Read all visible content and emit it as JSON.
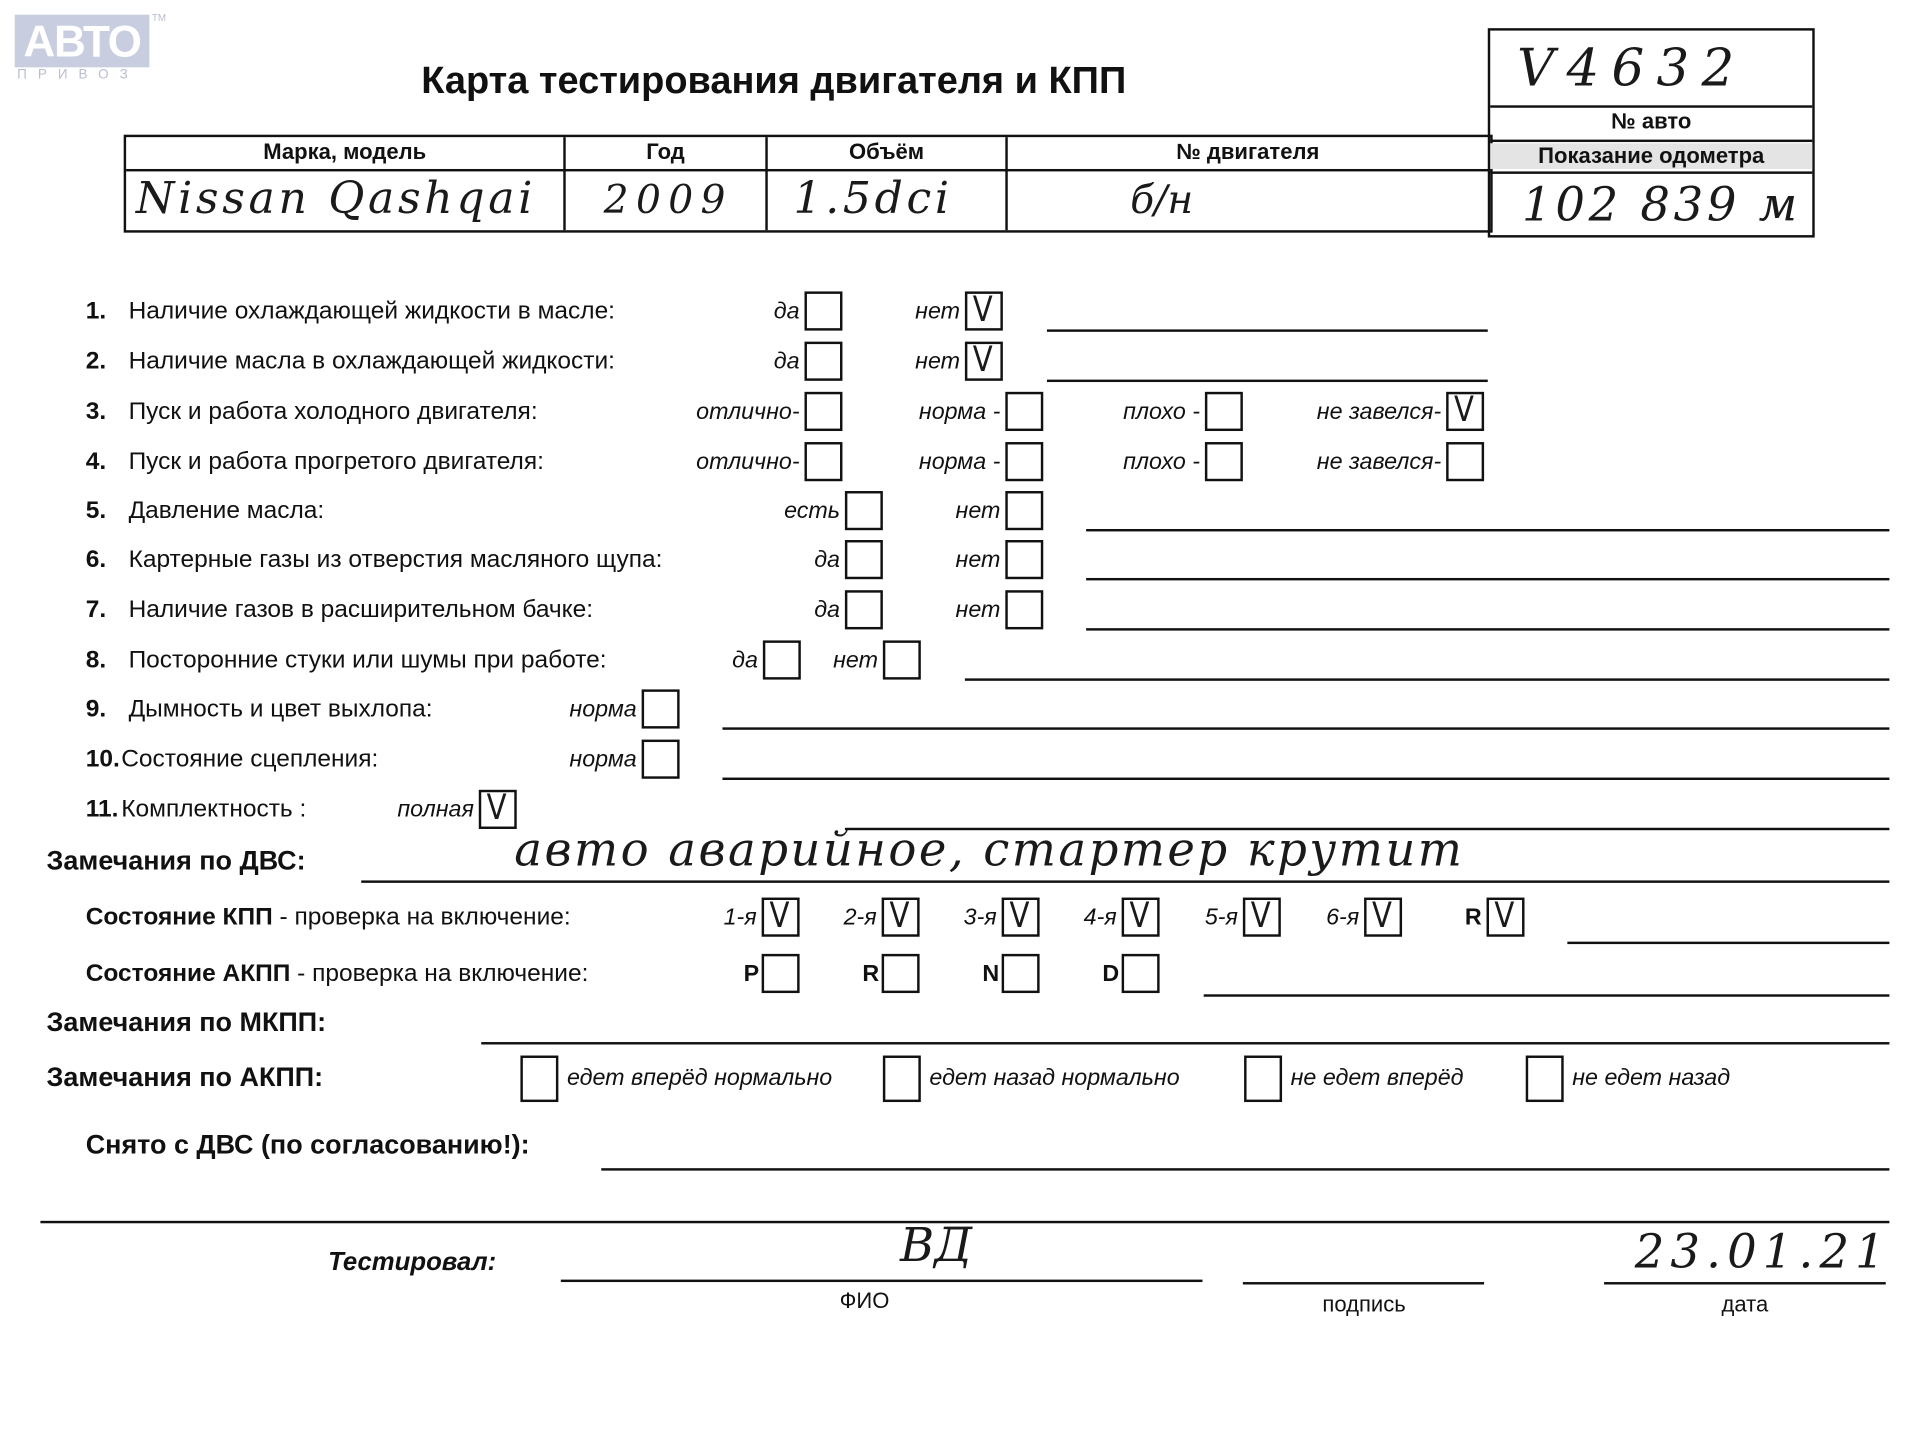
{
  "logo": {
    "text": "АВТО",
    "sub": "ПРИВОЗ",
    "tm": "TM"
  },
  "title": "Карта тестирования двигателя  и КПП",
  "vehicle_table": {
    "headers": [
      "Марка, модель",
      "Год",
      "Объём",
      "№ двигателя"
    ],
    "values": [
      "Nissan Qashqai",
      "2009",
      "1.5dci",
      "б/н"
    ]
  },
  "auto_number": {
    "label": "№ авто",
    "value": "V4632"
  },
  "odometer": {
    "label": "Показание одометра",
    "value": "102 839 м"
  },
  "items": [
    {
      "num": "1.",
      "label": "Наличие охлаждающей жидкости в масле:",
      "options": [
        {
          "label": "да",
          "checked": false
        },
        {
          "label": "нет",
          "checked": true
        }
      ]
    },
    {
      "num": "2.",
      "label": "Наличие масла в охлаждающей жидкости:",
      "options": [
        {
          "label": "да",
          "checked": false
        },
        {
          "label": "нет",
          "checked": true
        }
      ]
    },
    {
      "num": "3.",
      "label": "Пуск и работа холодного двигателя:",
      "options": [
        {
          "label": "отлично-",
          "checked": false
        },
        {
          "label": "норма -",
          "checked": false
        },
        {
          "label": "плохо -",
          "checked": false
        },
        {
          "label": "не завелся-",
          "checked": true
        }
      ]
    },
    {
      "num": "4.",
      "label": "Пуск и работа прогретого двигателя:",
      "options": [
        {
          "label": "отлично-",
          "checked": false
        },
        {
          "label": "норма -",
          "checked": false
        },
        {
          "label": "плохо -",
          "checked": false
        },
        {
          "label": "не завелся-",
          "checked": false
        }
      ]
    },
    {
      "num": "5.",
      "label": "Давление масла:",
      "options": [
        {
          "label": "есть",
          "checked": false
        },
        {
          "label": "нет",
          "checked": false
        }
      ]
    },
    {
      "num": "6.",
      "label": "Картерные газы из отверстия масляного щупа:",
      "options": [
        {
          "label": "да",
          "checked": false
        },
        {
          "label": "нет",
          "checked": false
        }
      ]
    },
    {
      "num": "7.",
      "label": "Наличие газов в расширительном бачке:",
      "options": [
        {
          "label": "да",
          "checked": false
        },
        {
          "label": "нет",
          "checked": false
        }
      ]
    },
    {
      "num": "8.",
      "label": "Посторонние стуки или шумы при работе:",
      "options": [
        {
          "label": "да",
          "checked": false
        },
        {
          "label": "нет",
          "checked": false
        }
      ]
    },
    {
      "num": "9.",
      "label": "Дымность и цвет выхлопа:",
      "options": [
        {
          "label": "норма",
          "checked": false
        }
      ]
    },
    {
      "num": "10.",
      "label": "Состояние сцепления:",
      "options": [
        {
          "label": "норма",
          "checked": false
        }
      ]
    },
    {
      "num": "11.",
      "label": "Комплектность :",
      "options": [
        {
          "label": "полная",
          "checked": true
        }
      ]
    }
  ],
  "check_mark": "V",
  "dvs_remarks": {
    "label": "Замечания по ДВС:",
    "value": "авто аварийное, стартер крутит"
  },
  "kpp": {
    "label_bold": "Состояние КПП",
    "label_rest": " - проверка на включение:",
    "gears": [
      {
        "label": "1-я",
        "checked": true
      },
      {
        "label": "2-я",
        "checked": true
      },
      {
        "label": "3-я",
        "checked": true
      },
      {
        "label": "4-я",
        "checked": true
      },
      {
        "label": "5-я",
        "checked": true
      },
      {
        "label": "6-я",
        "checked": true
      },
      {
        "label": "R",
        "checked": true
      }
    ]
  },
  "akpp": {
    "label_bold": "Состояние АКПП",
    "label_rest": " - проверка на включение:",
    "positions": [
      {
        "label": "P",
        "checked": false
      },
      {
        "label": "R",
        "checked": false
      },
      {
        "label": "N",
        "checked": false
      },
      {
        "label": "D",
        "checked": false
      }
    ]
  },
  "mkpp_remarks": {
    "label": "Замечания по МКПП:"
  },
  "akpp_remarks": {
    "label": "Замечания по АКПП:",
    "options": [
      {
        "label": "едет вперёд нормально",
        "checked": false
      },
      {
        "label": "едет назад нормально",
        "checked": false
      },
      {
        "label": "не едет вперёд",
        "checked": false
      },
      {
        "label": "не едет назад",
        "checked": false
      }
    ]
  },
  "removed": {
    "label": "Снято с ДВС (по согласованию!):"
  },
  "tested": {
    "label": "Тестировал:",
    "name": "ВД",
    "name_caption": "ФИО",
    "signature_caption": "подпись",
    "date": "23.01.21",
    "date_caption": "дата"
  }
}
